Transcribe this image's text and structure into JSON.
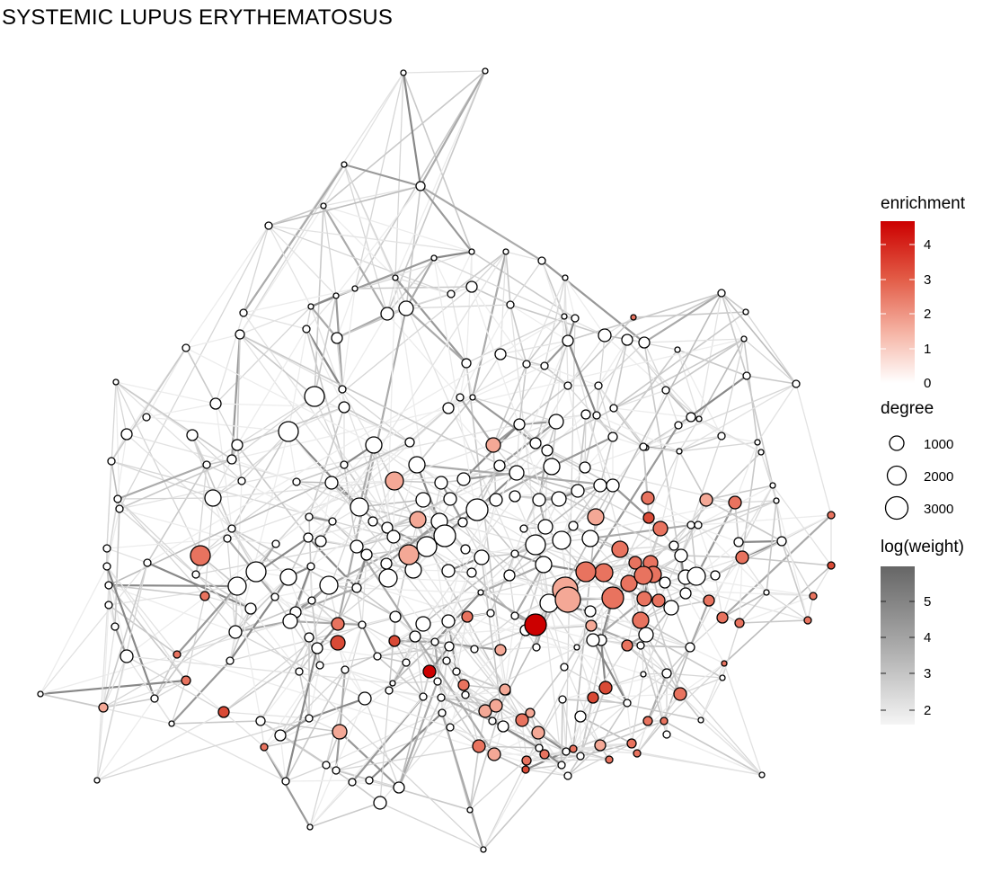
{
  "title": "SYSTEMIC LUPUS ERYTHEMATOSUS",
  "legend": {
    "enrichment": {
      "title": "enrichment",
      "ticks": [
        "4",
        "3",
        "2",
        "1",
        "0"
      ],
      "color_low": "#ffffff",
      "color_high": "#cc0000"
    },
    "degree": {
      "title": "degree",
      "ticks": [
        "1000",
        "2000",
        "3000"
      ]
    },
    "weight": {
      "title": "log(weight)",
      "ticks": [
        "5",
        "4",
        "3",
        "2"
      ],
      "color_low": "#f5f5f5",
      "color_high": "#666666"
    }
  },
  "colors": {
    "node_stroke": "#000000",
    "node_white": "#ffffff",
    "node_light": "#f4a896",
    "node_medium": "#e8735f",
    "node_strong": "#d94a36",
    "node_max": "#cc0000"
  }
}
